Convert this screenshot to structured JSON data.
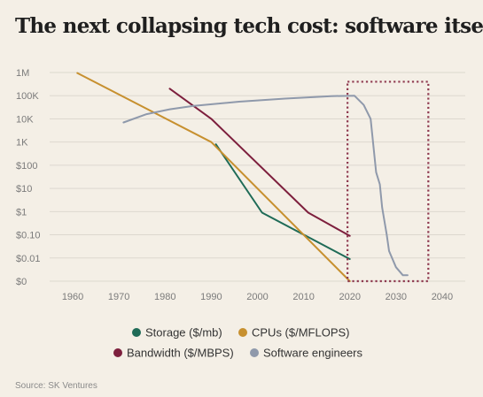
{
  "title": "The next collapsing tech cost: software itself",
  "source": "Source: SK Ventures",
  "chart_data": {
    "type": "line",
    "title": "The next collapsing tech cost: software itself",
    "xlabel": "",
    "ylabel": "",
    "x_ticks": [
      1960,
      1970,
      1980,
      1990,
      2000,
      2010,
      2020,
      2030,
      2040
    ],
    "xlim": [
      1955,
      2045
    ],
    "y_scale": "log",
    "y_ticks": [
      "$0",
      "$0.01",
      "$0.10",
      "$1",
      "$10",
      "$100",
      "1K",
      "10K",
      "100K",
      "1M"
    ],
    "grid": "horizontal",
    "legend_position": "bottom",
    "series": [
      {
        "name": "Storage ($/mb)",
        "color": "#1f6b57",
        "points": [
          [
            1991,
            800
          ],
          [
            2001,
            0.9
          ],
          [
            2020,
            0.009
          ]
        ]
      },
      {
        "name": "CPUs ($/MFLOPS)",
        "color": "#c7902f",
        "points": [
          [
            1961,
            950000
          ],
          [
            1990,
            1000
          ],
          [
            2020,
            0.001
          ]
        ]
      },
      {
        "name": "Bandwidth ($/MBPS)",
        "color": "#7d1f3d",
        "points": [
          [
            1981,
            200000
          ],
          [
            1990,
            10000
          ],
          [
            2011,
            0.9
          ],
          [
            2020,
            0.09
          ]
        ]
      },
      {
        "name": "Software engineers",
        "color": "#8f99ab",
        "points": [
          [
            1971,
            7000
          ],
          [
            1976,
            16000
          ],
          [
            1981,
            26000
          ],
          [
            1986,
            36000
          ],
          [
            1996,
            55000
          ],
          [
            2006,
            75000
          ],
          [
            2016,
            96000
          ],
          [
            2021,
            100000
          ],
          [
            2023,
            40000
          ],
          [
            2024.5,
            10000
          ],
          [
            2025.7,
            50
          ],
          [
            2026.5,
            15
          ],
          [
            2027,
            1.5
          ],
          [
            2028,
            0.1
          ],
          [
            2028.5,
            0.02
          ],
          [
            2030,
            0.004
          ],
          [
            2031.5,
            0.0018
          ],
          [
            2032.5,
            0.0018
          ]
        ]
      }
    ],
    "annotations": [
      {
        "type": "highlight_box",
        "style": "dotted",
        "color": "#8f3a50",
        "x_range": [
          2019.5,
          2037
        ],
        "y_range": [
          0.001,
          400000
        ]
      }
    ]
  },
  "legend": [
    {
      "label": "Storage ($/mb)",
      "color": "#1f6b57"
    },
    {
      "label": "CPUs ($/MFLOPS)",
      "color": "#c7902f"
    },
    {
      "label": "Bandwidth ($/MBPS)",
      "color": "#7d1f3d"
    },
    {
      "label": "Software engineers",
      "color": "#8f99ab"
    }
  ]
}
